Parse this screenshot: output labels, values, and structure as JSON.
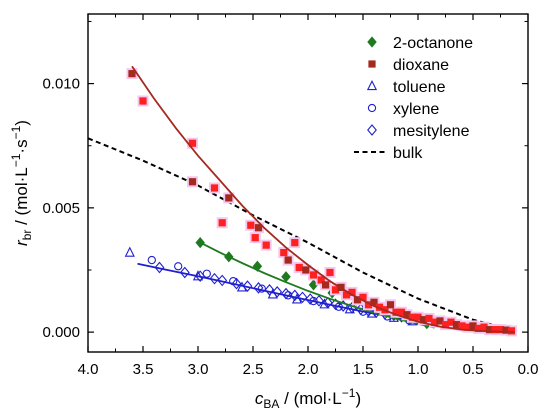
{
  "chart_data": {
    "type": "scatter",
    "x_axis": {
      "label_main": "c",
      "label_sub": "BA",
      "label_unit": " / (mol·L",
      "label_unit_sup": "−1",
      "label_unit_close": ")",
      "range": [
        4.0,
        0.0
      ],
      "ticks": [
        4.0,
        3.5,
        3.0,
        2.5,
        2.0,
        1.5,
        1.0,
        0.5,
        0.0
      ],
      "tick_labels": [
        "4.0",
        "3.5",
        "3.0",
        "2.5",
        "2.0",
        "1.5",
        "1.0",
        "0.5",
        "0.0"
      ]
    },
    "y_axis": {
      "label_main": "r",
      "label_sub": "br",
      "label_unit": " / (mol·L",
      "label_unit_sup1": "−1",
      "label_unit_mid": "·s",
      "label_unit_sup2": "−1",
      "label_unit_close": ")",
      "range": [
        -0.0008,
        0.0128
      ],
      "ticks": [
        0.0,
        0.005,
        0.01
      ],
      "tick_labels": [
        "0.000",
        "0.005",
        "0.010"
      ]
    },
    "legend_position": "top-right",
    "series": [
      {
        "name": "2-octanone",
        "marker": "diamond-filled",
        "color": "#1f7a1f",
        "points": [
          [
            2.98,
            0.0036
          ],
          [
            2.72,
            0.00303
          ],
          [
            2.46,
            0.00265
          ],
          [
            2.2,
            0.00223
          ],
          [
            1.95,
            0.0019
          ],
          [
            1.78,
            0.00158
          ],
          [
            1.56,
            0.00128
          ],
          [
            1.36,
            0.00101
          ],
          [
            1.18,
            0.00077
          ],
          [
            1.02,
            0.00054
          ],
          [
            0.92,
            0.00034
          ]
        ],
        "fit": [
          [
            3.0,
            0.00365
          ],
          [
            2.8,
            0.0032
          ],
          [
            2.6,
            0.00278
          ],
          [
            2.4,
            0.00238
          ],
          [
            2.2,
            0.00201
          ],
          [
            2.0,
            0.00166
          ],
          [
            1.8,
            0.00134
          ],
          [
            1.6,
            0.00105
          ],
          [
            1.4,
            0.00078
          ],
          [
            1.2,
            0.00054
          ],
          [
            1.0,
            0.00033
          ],
          [
            0.85,
            0.00018
          ]
        ]
      },
      {
        "name": "dioxane",
        "marker": "square-filled",
        "color": "#a52a1e",
        "highlight": "#ff2020",
        "points": [
          [
            3.6,
            0.0104
          ],
          [
            3.5,
            0.0093
          ],
          [
            3.05,
            0.0076
          ],
          [
            3.05,
            0.00605
          ],
          [
            2.85,
            0.0058
          ],
          [
            2.78,
            0.0044
          ],
          [
            2.72,
            0.0054
          ],
          [
            2.52,
            0.0043
          ],
          [
            2.48,
            0.0038
          ],
          [
            2.45,
            0.0042
          ],
          [
            2.38,
            0.0035
          ],
          [
            2.22,
            0.0032
          ],
          [
            2.18,
            0.0029
          ],
          [
            2.12,
            0.0036
          ],
          [
            2.08,
            0.0026
          ],
          [
            2.02,
            0.0025
          ],
          [
            1.95,
            0.0023
          ],
          [
            1.88,
            0.0021
          ],
          [
            1.84,
            0.0019
          ],
          [
            1.8,
            0.0024
          ],
          [
            1.75,
            0.0017
          ],
          [
            1.7,
            0.0018
          ],
          [
            1.65,
            0.0015
          ],
          [
            1.6,
            0.0016
          ],
          [
            1.55,
            0.0013
          ],
          [
            1.5,
            0.0014
          ],
          [
            1.45,
            0.0011
          ],
          [
            1.4,
            0.0012
          ],
          [
            1.35,
            0.001
          ],
          [
            1.3,
            0.0009
          ],
          [
            1.25,
            0.0011
          ],
          [
            1.2,
            0.0008
          ],
          [
            1.15,
            0.0008
          ],
          [
            1.1,
            0.0007
          ],
          [
            1.05,
            0.0006
          ],
          [
            1.0,
            0.0006
          ],
          [
            0.95,
            0.0005
          ],
          [
            0.9,
            0.00055
          ],
          [
            0.85,
            0.0004
          ],
          [
            0.8,
            0.00045
          ],
          [
            0.75,
            0.0003
          ],
          [
            0.7,
            0.0004
          ],
          [
            0.65,
            0.0003
          ],
          [
            0.6,
            0.00025
          ],
          [
            0.55,
            0.0002
          ],
          [
            0.5,
            0.00025
          ],
          [
            0.45,
            0.00015
          ],
          [
            0.4,
            0.0002
          ],
          [
            0.35,
            0.0001
          ],
          [
            0.3,
            0.0001
          ],
          [
            0.25,
            0.0001
          ],
          [
            0.2,
            8e-05
          ],
          [
            0.15,
            5e-05
          ]
        ],
        "fit": [
          [
            3.6,
            0.0107
          ],
          [
            3.4,
            0.0094
          ],
          [
            3.2,
            0.0082
          ],
          [
            3.0,
            0.0071
          ],
          [
            2.8,
            0.0061
          ],
          [
            2.6,
            0.0051
          ],
          [
            2.4,
            0.0042
          ],
          [
            2.2,
            0.0034
          ],
          [
            2.0,
            0.0027
          ],
          [
            1.8,
            0.00205
          ],
          [
            1.6,
            0.0015
          ],
          [
            1.4,
            0.00105
          ],
          [
            1.2,
            0.0007
          ],
          [
            1.0,
            0.00042
          ],
          [
            0.8,
            0.00022
          ],
          [
            0.6,
            0.0001
          ],
          [
            0.4,
            4e-05
          ],
          [
            0.2,
            1e-05
          ],
          [
            0.12,
            0.0
          ]
        ]
      },
      {
        "name": "toluene",
        "marker": "triangle-open",
        "color": "#2020d0",
        "points": [
          [
            3.62,
            0.0032
          ],
          [
            3.0,
            0.00225
          ],
          [
            2.6,
            0.0018
          ],
          [
            2.32,
            0.00152
          ],
          [
            2.1,
            0.00132
          ],
          [
            1.85,
            0.00112
          ],
          [
            1.62,
            0.00092
          ],
          [
            1.42,
            0.00075
          ],
          [
            1.22,
            0.00058
          ],
          [
            1.05,
            0.00044
          ]
        ],
        "fit": [
          [
            3.55,
            0.00275
          ],
          [
            3.3,
            0.00252
          ],
          [
            3.0,
            0.00225
          ],
          [
            2.7,
            0.00196
          ],
          [
            2.4,
            0.00167
          ],
          [
            2.1,
            0.00138
          ],
          [
            1.8,
            0.0011
          ],
          [
            1.5,
            0.00083
          ],
          [
            1.2,
            0.00058
          ],
          [
            1.0,
            0.00043
          ],
          [
            0.85,
            0.00033
          ]
        ]
      },
      {
        "name": "xylene",
        "marker": "circle-open",
        "color": "#2020d0",
        "points": [
          [
            3.42,
            0.0029
          ],
          [
            3.18,
            0.00265
          ],
          [
            2.92,
            0.00235
          ],
          [
            2.68,
            0.00205
          ],
          [
            2.42,
            0.00175
          ],
          [
            2.18,
            0.00148
          ],
          [
            1.95,
            0.00125
          ],
          [
            1.72,
            0.00102
          ],
          [
            1.5,
            0.00082
          ],
          [
            1.28,
            0.00063
          ],
          [
            1.08,
            0.00047
          ]
        ],
        "fit": []
      },
      {
        "name": "mesitylene",
        "marker": "diamond-open",
        "color": "#2020d0",
        "points": [
          [
            3.35,
            0.0026
          ],
          [
            3.12,
            0.0024
          ],
          [
            2.98,
            0.00225
          ],
          [
            2.85,
            0.00215
          ],
          [
            2.78,
            0.00208
          ],
          [
            2.65,
            0.00195
          ],
          [
            2.55,
            0.00185
          ],
          [
            2.45,
            0.00178
          ],
          [
            2.35,
            0.0017
          ],
          [
            2.28,
            0.00162
          ],
          [
            2.2,
            0.00155
          ],
          [
            2.12,
            0.00148
          ],
          [
            2.05,
            0.0014
          ],
          [
            1.98,
            0.00133
          ],
          [
            1.9,
            0.00126
          ],
          [
            1.82,
            0.00118
          ],
          [
            1.75,
            0.00112
          ],
          [
            1.68,
            0.00105
          ],
          [
            1.6,
            0.00098
          ],
          [
            1.52,
            0.00092
          ],
          [
            1.45,
            0.00085
          ],
          [
            1.38,
            0.0008
          ],
          [
            1.3,
            0.00074
          ],
          [
            1.22,
            0.00068
          ],
          [
            1.15,
            0.00062
          ],
          [
            1.08,
            0.00057
          ],
          [
            1.02,
            0.00052
          ]
        ],
        "fit": []
      },
      {
        "name": "bulk",
        "marker": "dashed-line",
        "color": "#000000",
        "points": [],
        "fit": [
          [
            4.0,
            0.0078
          ],
          [
            3.5,
            0.0069
          ],
          [
            3.0,
            0.0059
          ],
          [
            2.5,
            0.0047
          ],
          [
            2.0,
            0.0036
          ],
          [
            1.5,
            0.0024
          ],
          [
            1.0,
            0.00135
          ],
          [
            0.5,
            0.0005
          ],
          [
            0.1,
            2e-05
          ]
        ]
      }
    ]
  }
}
